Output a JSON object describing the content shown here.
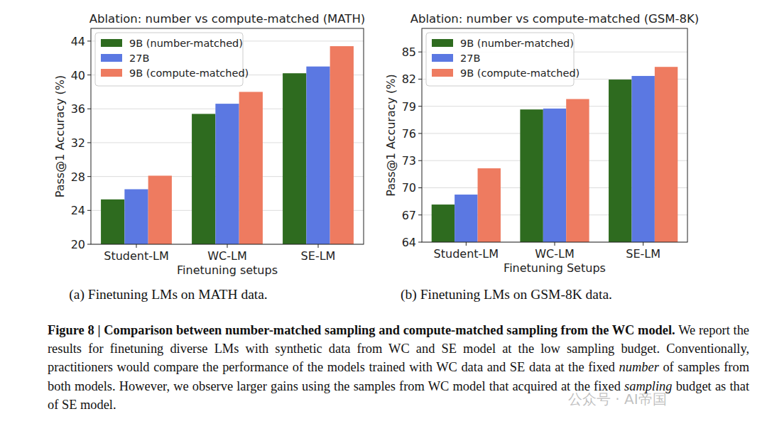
{
  "chart_data": [
    {
      "type": "bar",
      "title": "Ablation: number vs compute-matched (MATH)",
      "x_label": "Finetuning setups",
      "y_label": "Pass@1 Accuracy (%)",
      "caption": "(a) Finetuning LMs on MATH data.",
      "categories": [
        "Student-LM",
        "WC-LM",
        "SE-LM"
      ],
      "series": [
        {
          "name": "9B (number-matched)",
          "color": "#2e6b1f",
          "values": [
            25.3,
            35.4,
            40.2
          ]
        },
        {
          "name": "27B",
          "color": "#5b78e2",
          "values": [
            26.5,
            36.6,
            41.0
          ]
        },
        {
          "name": "9B (compute-matched)",
          "color": "#ee7b60",
          "values": [
            28.1,
            38.0,
            43.4
          ]
        }
      ],
      "ylim": [
        20,
        45.5
      ],
      "yticks": [
        20,
        24,
        28,
        32,
        36,
        40,
        44
      ],
      "grid": true,
      "legend": "upper left"
    },
    {
      "type": "bar",
      "title": "Ablation: number vs compute-matched (GSM-8K)",
      "x_label": "Finetuning Setups",
      "y_label": "Pass@1 Accuracy (%)",
      "caption": "(b) Finetuning LMs on GSM-8K data.",
      "categories": [
        "Student-LM",
        "WC-LM",
        "SE-LM"
      ],
      "series": [
        {
          "name": "9B (number-matched)",
          "color": "#2e6b1f",
          "values": [
            68.15,
            78.65,
            81.95
          ]
        },
        {
          "name": "27B",
          "color": "#5b78e2",
          "values": [
            69.25,
            78.75,
            82.35
          ]
        },
        {
          "name": "9B (compute-matched)",
          "color": "#ee7b60",
          "values": [
            72.15,
            79.8,
            83.35
          ]
        }
      ],
      "ylim": [
        64,
        87.6
      ],
      "yticks": [
        64,
        67,
        70,
        73,
        76,
        79,
        82,
        85
      ],
      "grid": true,
      "legend": "upper left"
    }
  ],
  "figure": {
    "caption": {
      "label": "Figure 8 |",
      "title": "Comparison between number-matched sampling and compute-matched sampling from the WC model.",
      "body": [
        "We report the results for finetuning diverse LMs with synthetic data from WC and SE model at the low sampling budget. Conventionally, practitioners would compare the performance of the models trained with WC data and SE data at the fixed ",
        "number",
        " of samples from both models. However, we observe larger gains using the samples from WC model that acquired at the fixed ",
        "sampling",
        " budget as that of SE model."
      ]
    },
    "watermark": "公众号 · AI帝国"
  }
}
